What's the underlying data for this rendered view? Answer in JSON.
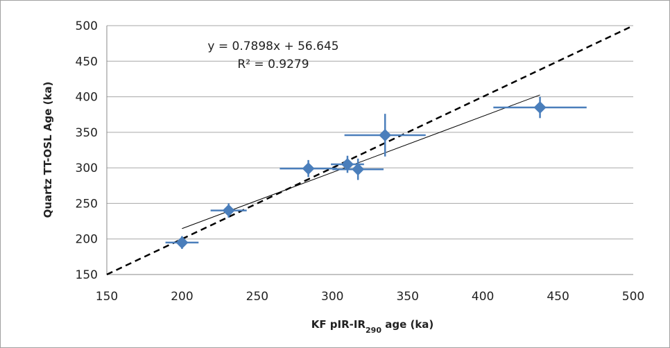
{
  "chart_data": {
    "type": "scatter",
    "xlabel": "KF pIR-IR290 age (ka)",
    "xlabel_main": "KF pIR-IR",
    "xlabel_sub": "290",
    "xlabel_suffix": " age (ka)",
    "ylabel": "Quartz TT-OSL Age (ka)",
    "xlim": [
      150,
      500
    ],
    "ylim": [
      150,
      500
    ],
    "xticks": [
      150,
      200,
      250,
      300,
      350,
      400,
      450,
      500
    ],
    "yticks": [
      150,
      200,
      250,
      300,
      350,
      400,
      450,
      500
    ],
    "grid": "horizontal",
    "points": [
      {
        "x": 200,
        "y": 195,
        "xerr": 11,
        "yerr": 9
      },
      {
        "x": 231,
        "y": 240,
        "xerr": 12,
        "yerr": 10
      },
      {
        "x": 284,
        "y": 299,
        "xerr": 19,
        "yerr": 12
      },
      {
        "x": 310,
        "y": 305,
        "xerr": 11,
        "yerr": 12
      },
      {
        "x": 317,
        "y": 298,
        "xerr": 17,
        "yerr": 15
      },
      {
        "x": 335,
        "y": 346,
        "xerr": 27,
        "yerr": 30
      },
      {
        "x": 438,
        "y": 385,
        "xerr": 31,
        "yerr": 15
      }
    ],
    "trendline": {
      "slope": 0.7898,
      "intercept": 56.645,
      "x_range": [
        200,
        438
      ]
    },
    "equation_text": "y = 0.7898x + 56.645",
    "r2_text": "R² = 0.9279",
    "reference_line": {
      "style": "dashed",
      "from": [
        150,
        150
      ],
      "to": [
        500,
        500
      ]
    },
    "marker_color": "#4a7ebb",
    "error_bar_color": "#4a7ebb",
    "grid_color": "#a6a6a6"
  }
}
